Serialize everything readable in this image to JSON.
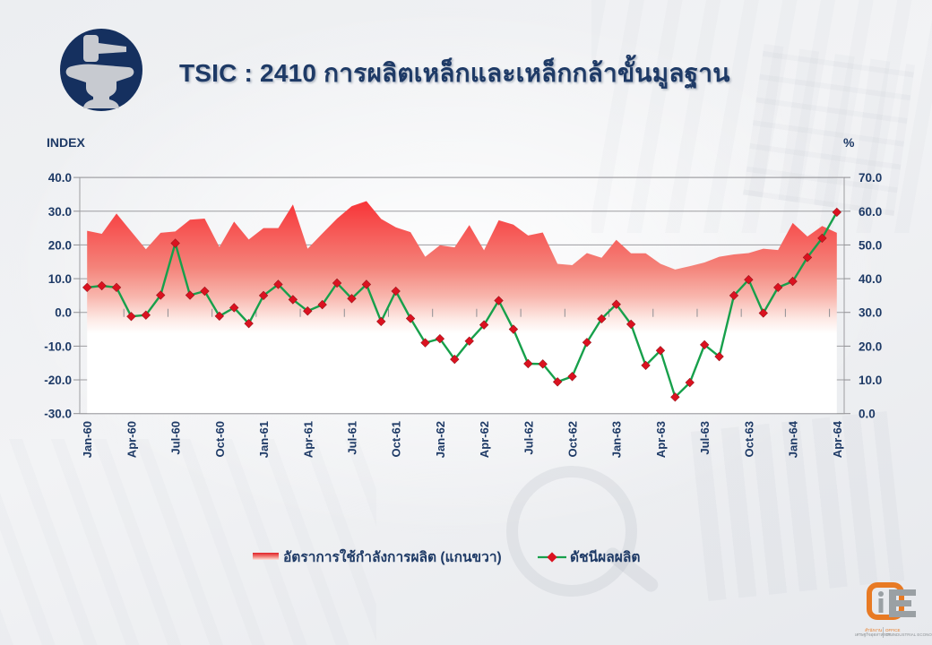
{
  "header": {
    "title": "TSIC : 2410 การผลิตเหล็กและเหล็กกล้าขั้นมูลฐาน"
  },
  "chart_data": {
    "type": "combo(area+line)",
    "x": [
      "Jan-60",
      "Feb-60",
      "Mar-60",
      "Apr-60",
      "May-60",
      "Jun-60",
      "Jul-60",
      "Aug-60",
      "Sep-60",
      "Oct-60",
      "Nov-60",
      "Dec-60",
      "Jan-61",
      "Feb-61",
      "Mar-61",
      "Apr-61",
      "May-61",
      "Jun-61",
      "Jul-61",
      "Aug-61",
      "Sep-61",
      "Oct-61",
      "Nov-61",
      "Dec-61",
      "Jan-62",
      "Feb-62",
      "Mar-62",
      "Apr-62",
      "May-62",
      "Jun-62",
      "Jul-62",
      "Aug-62",
      "Sep-62",
      "Oct-62",
      "Nov-62",
      "Dec-62",
      "Jan-63",
      "Feb-63",
      "Mar-63",
      "Apr-63",
      "May-63",
      "Jun-63",
      "Jul-63",
      "Aug-63",
      "Sep-63",
      "Oct-63",
      "Nov-63",
      "Dec-63",
      "Jan-64",
      "Feb-64",
      "Mar-64",
      "Apr-64"
    ],
    "x_tick_labels": [
      "Jan-60",
      "Apr-60",
      "Jul-60",
      "Oct-60",
      "Jan-61",
      "Apr-61",
      "Jul-61",
      "Oct-61",
      "Jan-62",
      "Apr-62",
      "Jul-62",
      "Oct-62",
      "Jan-63",
      "Apr-63",
      "Jul-63",
      "Oct-63",
      "Jan-64",
      "Apr-64"
    ],
    "series": [
      {
        "name": "อัตราการใช้กำลังการผลิต (แกนขวา)",
        "type": "area",
        "axis": "right",
        "color": "#f8111b",
        "fill": "red-to-white-vertical-gradient",
        "values": [
          54.2,
          53.3,
          59.3,
          54.0,
          48.7,
          53.6,
          54.0,
          57.5,
          57.8,
          49.4,
          56.9,
          51.6,
          55.0,
          55.0,
          62.0,
          48.9,
          53.4,
          57.8,
          61.5,
          63.0,
          57.7,
          55.2,
          53.8,
          46.5,
          49.9,
          49.3,
          55.9,
          48.4,
          57.3,
          56.0,
          52.8,
          53.7,
          44.4,
          44.0,
          47.6,
          46.2,
          51.5,
          47.5,
          47.5,
          44.4,
          42.7,
          43.7,
          44.8,
          46.5,
          47.2,
          47.6,
          48.9,
          48.5,
          56.5,
          52.5,
          55.6,
          53.6
        ]
      },
      {
        "name": "ดัชนีผลผลิต",
        "type": "line",
        "axis": "left",
        "color": "#17a04b",
        "marker": "diamond",
        "marker_color": "#da1220",
        "values": [
          7.4,
          7.9,
          7.4,
          -1.2,
          -0.8,
          5.1,
          20.5,
          5.1,
          6.3,
          -1.1,
          1.4,
          -3.3,
          5.0,
          8.3,
          3.8,
          0.4,
          2.3,
          8.7,
          4.1,
          8.3,
          -2.7,
          6.3,
          -1.8,
          -9.0,
          -7.8,
          -13.9,
          -8.5,
          -3.7,
          3.5,
          -5.0,
          -15.2,
          -15.3,
          -20.6,
          -19.0,
          -8.9,
          -1.9,
          2.4,
          -3.5,
          -15.7,
          -11.3,
          -25.1,
          -20.8,
          -9.6,
          -13.1,
          5.0,
          9.7,
          -0.2,
          7.4,
          9.2,
          16.3,
          22.0,
          29.7
        ]
      }
    ],
    "left_axis": {
      "title": "INDEX",
      "min": -30,
      "max": 40,
      "step": 10,
      "tick_labels": [
        "40.0",
        "30.0",
        "20.0",
        "10.0",
        "0.0",
        "-10.0",
        "-20.0",
        "-30.0"
      ]
    },
    "right_axis": {
      "title": "%",
      "min": 0,
      "max": 70,
      "step": 10,
      "tick_labels": [
        "70.0",
        "60.0",
        "50.0",
        "40.0",
        "30.0",
        "20.0",
        "10.0",
        "0.0"
      ]
    },
    "grid": "horizontal-only",
    "legend_position": "bottom"
  },
  "footer_logo": {
    "thai_line1": "สำนักงาน",
    "thai_line2": "เศรษฐกิจอุตสาหกรรม",
    "eng_line1": "OFFICE",
    "eng_line2": "OF INDUSTRIAL ECONOMICS"
  },
  "colors": {
    "text_navy": "#1e3a66",
    "area_red": "#f8111b",
    "line_green": "#17a04b",
    "marker_red": "#da1220",
    "grid_gray": "#9d9da1",
    "logo_navy": "#15305f",
    "logo_gray": "#c7cad0",
    "oie_orange": "#e87a24",
    "background": "#edeff2"
  }
}
